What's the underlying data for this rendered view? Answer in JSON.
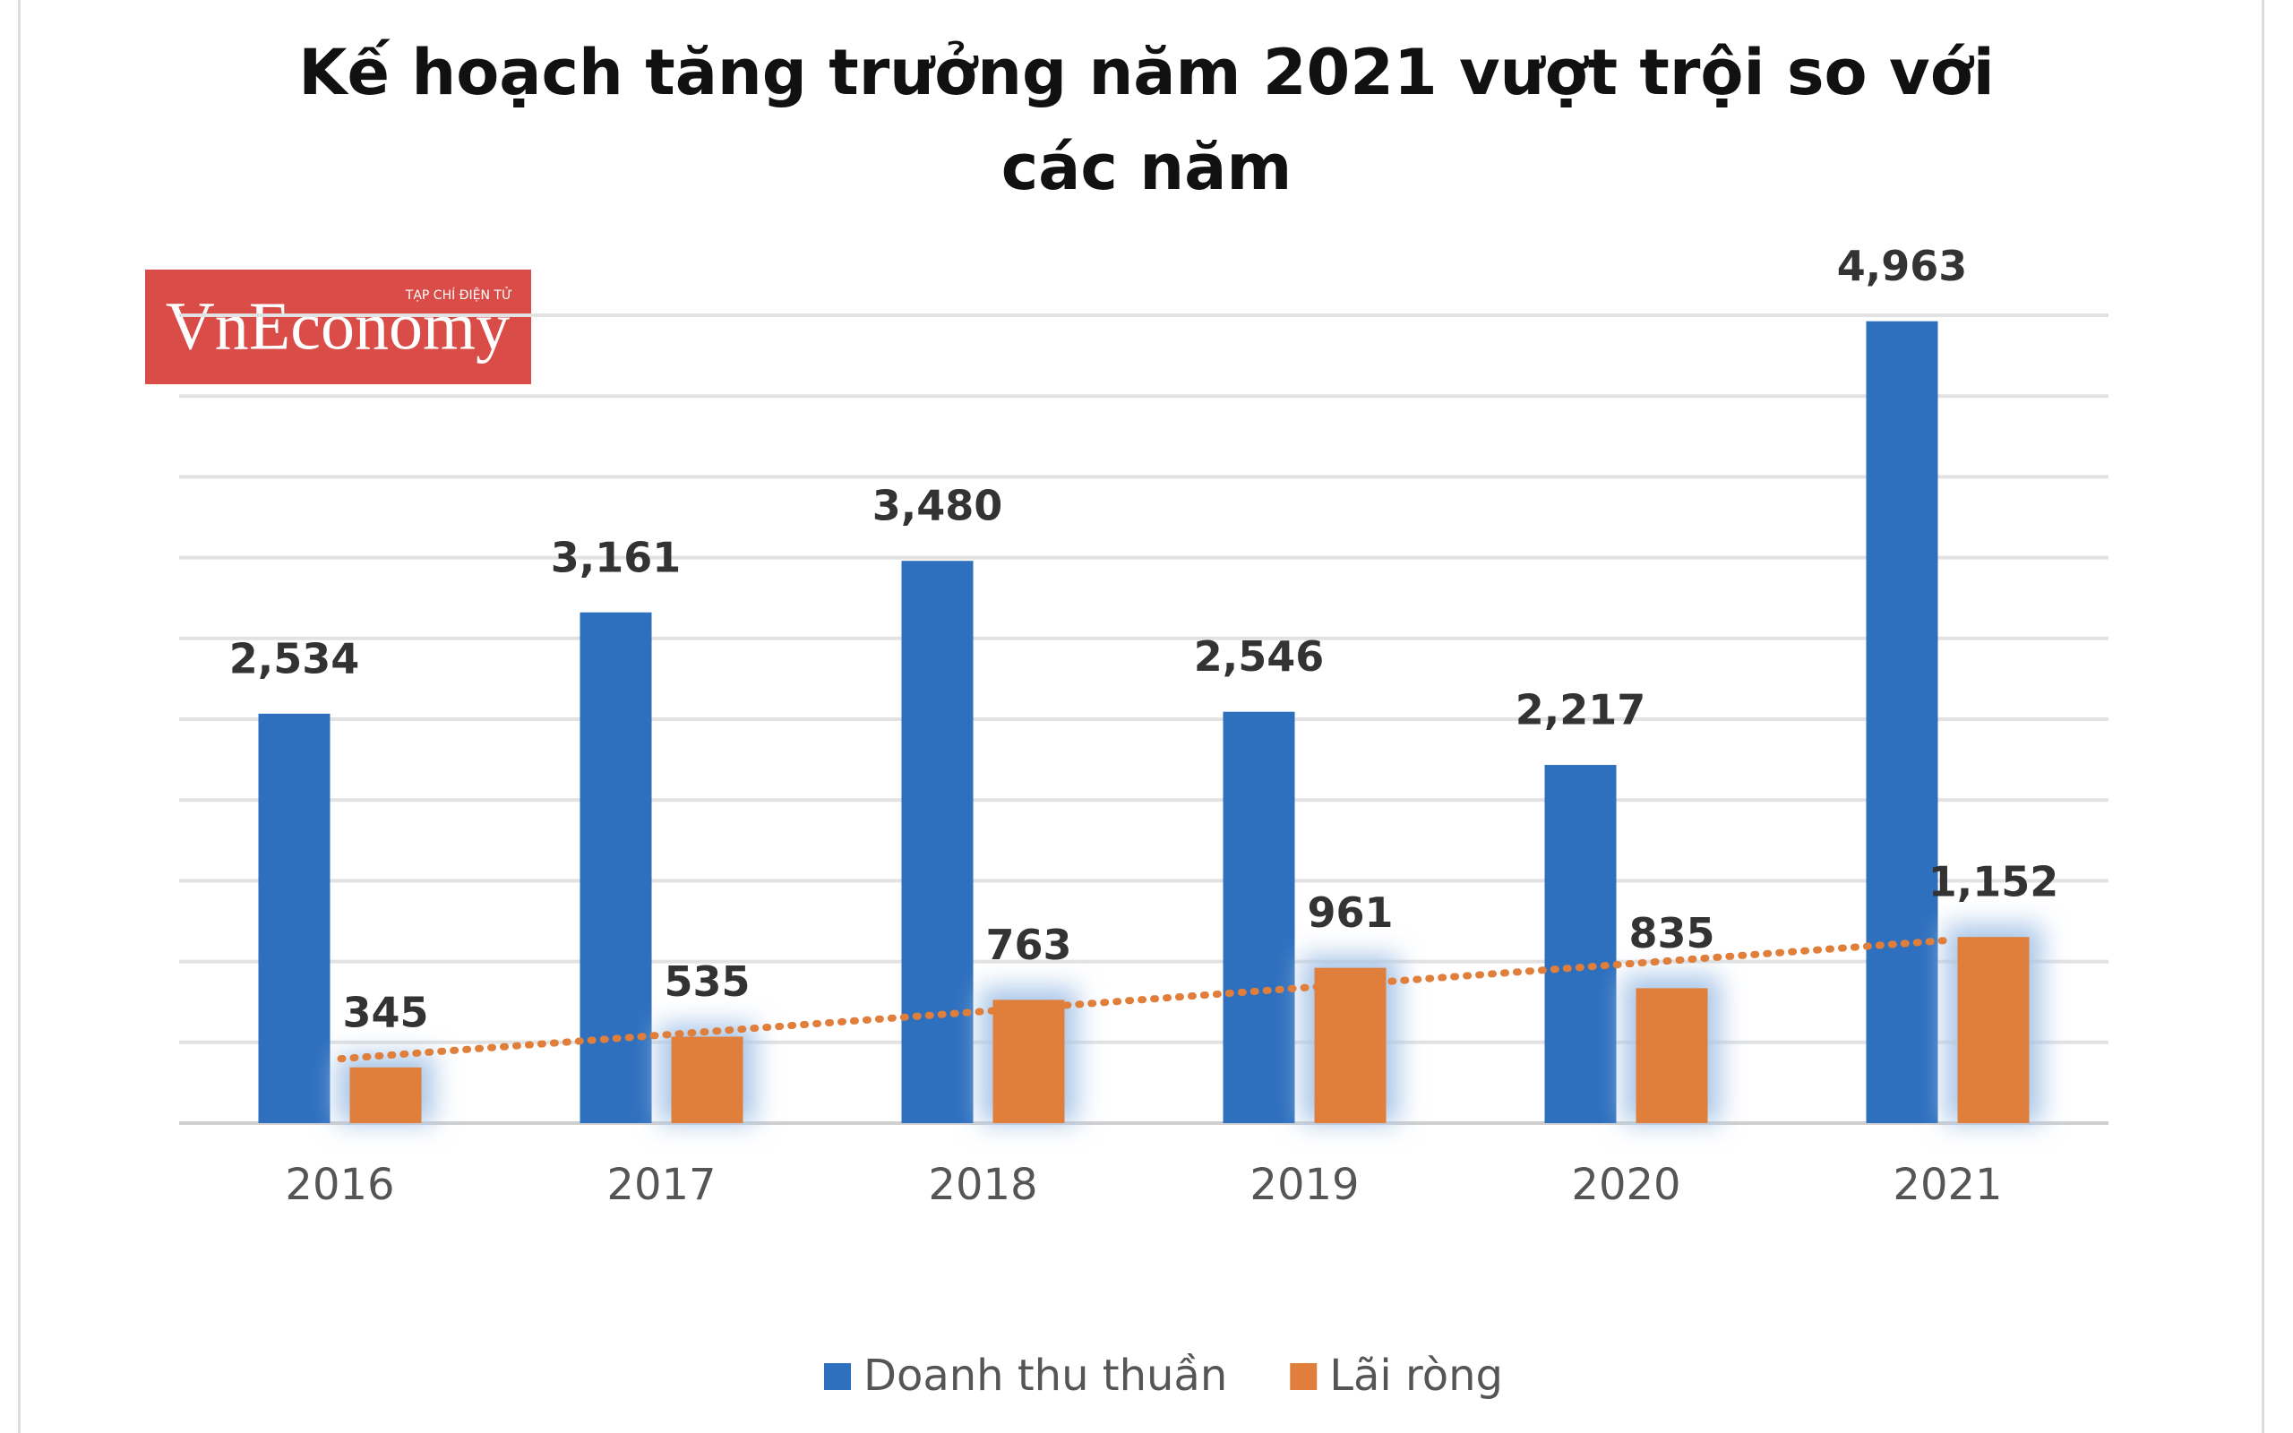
{
  "chart_data": {
    "type": "bar",
    "title": "Kế hoạch tăng trưởng năm 2021 vượt trội so với các năm",
    "logo": {
      "text": "VnEconomy",
      "tagline": "TẠP CHÍ ĐIỆN TỬ",
      "color": "#d94c47"
    },
    "categories": [
      "2016",
      "2017",
      "2018",
      "2019",
      "2020",
      "2021"
    ],
    "series": [
      {
        "name": "Doanh thu thuần",
        "color": "#2e6fbe",
        "values": [
          2534,
          3161,
          3480,
          2546,
          2217,
          4963
        ],
        "value_labels": [
          "2,534",
          "3,161",
          "3,480",
          "2,546",
          "2,217",
          "4,963"
        ]
      },
      {
        "name": "Lãi ròng",
        "color": "#e07f3c",
        "values": [
          345,
          535,
          763,
          961,
          835,
          1152
        ],
        "value_labels": [
          "345",
          "535",
          "763",
          "961",
          "835",
          "1,152"
        ],
        "trendline": true
      }
    ],
    "ylim": [
      0,
      5000
    ],
    "yticks": [
      0,
      500,
      1000,
      1500,
      2000,
      2500,
      3000,
      3500,
      4000,
      4500,
      5000
    ],
    "grid": true,
    "legend": "bottom"
  }
}
